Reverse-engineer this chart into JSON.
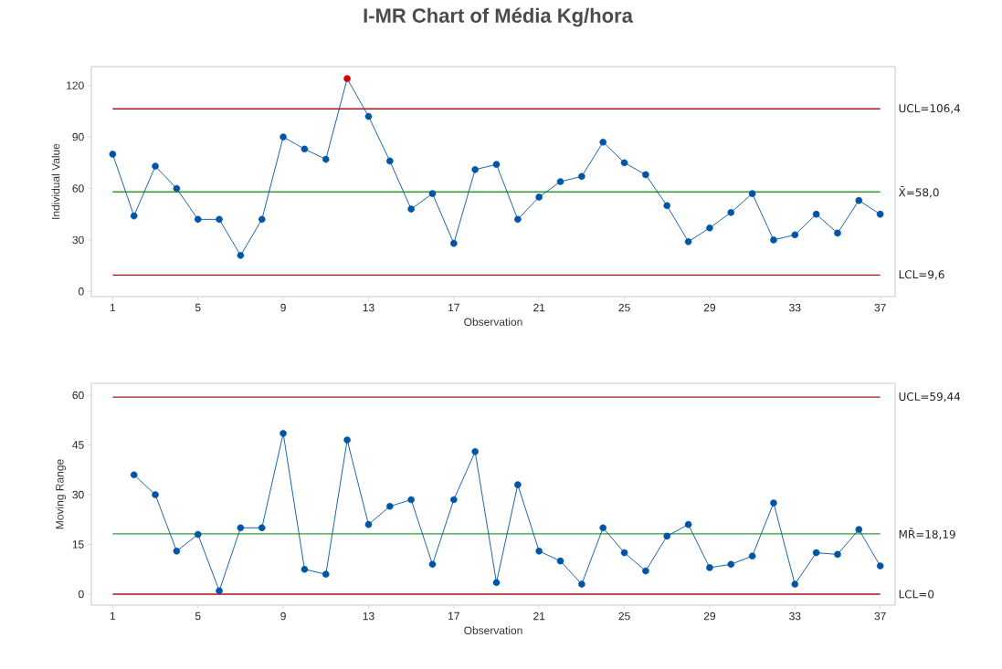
{
  "chart_data": [
    {
      "type": "line",
      "title": "I-MR Chart of Média Kg/hora",
      "xlabel": "Observation",
      "ylabel": "Individual Value",
      "marker": "circle",
      "line_style": "solid",
      "grid": false,
      "x": [
        1,
        2,
        3,
        4,
        5,
        6,
        7,
        8,
        9,
        10,
        11,
        12,
        13,
        14,
        15,
        16,
        17,
        18,
        19,
        20,
        21,
        22,
        23,
        24,
        25,
        26,
        27,
        28,
        29,
        30,
        31,
        32,
        33,
        34,
        35,
        36,
        37
      ],
      "xlim": [
        0,
        37.7
      ],
      "xticks": [
        1,
        5,
        9,
        13,
        17,
        21,
        25,
        29,
        33,
        37
      ],
      "ylim": [
        -3,
        131
      ],
      "yticks": [
        0,
        30,
        60,
        90,
        120
      ],
      "series": [
        {
          "color": "#0054a6",
          "values": [
            80,
            44,
            73,
            60,
            42,
            42,
            21,
            42,
            90,
            83,
            77,
            124,
            102,
            76,
            48,
            57,
            28,
            71,
            74,
            42,
            55,
            64,
            67,
            87,
            75,
            68,
            50,
            29,
            37,
            46,
            57,
            30,
            33,
            45,
            34,
            53,
            45
          ],
          "colors": [
            "#0054a6",
            "#0054a6",
            "#0054a6",
            "#0054a6",
            "#0054a6",
            "#0054a6",
            "#0054a6",
            "#0054a6",
            "#0054a6",
            "#0054a6",
            "#0054a6",
            "#d40000",
            "#0054a6",
            "#0054a6",
            "#0054a6",
            "#0054a6",
            "#0054a6",
            "#0054a6",
            "#0054a6",
            "#0054a6",
            "#0054a6",
            "#0054a6",
            "#0054a6",
            "#0054a6",
            "#0054a6",
            "#0054a6",
            "#0054a6",
            "#0054a6",
            "#0054a6",
            "#0054a6",
            "#0054a6",
            "#0054a6",
            "#0054a6",
            "#0054a6",
            "#0054a6",
            "#0054a6",
            "#0054a6"
          ]
        }
      ],
      "ref_lines": [
        {
          "axis": "y",
          "value": 106.4,
          "label": "UCL=106,4",
          "color": "#a01a1a"
        },
        {
          "axis": "y",
          "value": 58.0,
          "label": "X̄=58,0",
          "color": "#2ca02c"
        },
        {
          "axis": "y",
          "value": 9.6,
          "label": "LCL=9,6",
          "color": "#a01a1a"
        }
      ]
    },
    {
      "type": "line",
      "xlabel": "Observation",
      "ylabel": "Moving Range",
      "marker": "circle",
      "line_style": "solid",
      "grid": false,
      "x": [
        2,
        3,
        4,
        5,
        6,
        7,
        8,
        9,
        10,
        11,
        12,
        13,
        14,
        15,
        16,
        17,
        18,
        19,
        20,
        21,
        22,
        23,
        24,
        25,
        26,
        27,
        28,
        29,
        30,
        31,
        32,
        33,
        34,
        35,
        36,
        37
      ],
      "xlim": [
        0,
        37.7
      ],
      "xticks": [
        1,
        5,
        9,
        13,
        17,
        21,
        25,
        29,
        33,
        37
      ],
      "ylim": [
        -3.3,
        63.6
      ],
      "yticks": [
        0,
        15,
        30,
        45,
        60
      ],
      "series": [
        {
          "color": "#0054a6",
          "values": [
            36,
            30,
            13,
            18,
            1,
            20,
            20,
            48.5,
            7.5,
            6,
            46.5,
            21,
            26.5,
            28.5,
            9,
            28.5,
            43,
            3.5,
            33,
            13,
            10,
            3,
            20,
            12.5,
            7,
            17.5,
            21,
            8,
            9,
            11.5,
            27.5,
            3,
            12.5,
            12,
            19.5,
            8.5
          ]
        }
      ],
      "ref_lines": [
        {
          "axis": "y",
          "value": 59.44,
          "label": "UCL=59,44",
          "color": "#a01a1a"
        },
        {
          "axis": "y",
          "value": 18.19,
          "label": "MR̄=18,19",
          "color": "#2ca02c"
        },
        {
          "axis": "y",
          "value": 0,
          "label": "LCL=0",
          "color": "#a01a1a"
        }
      ]
    }
  ]
}
